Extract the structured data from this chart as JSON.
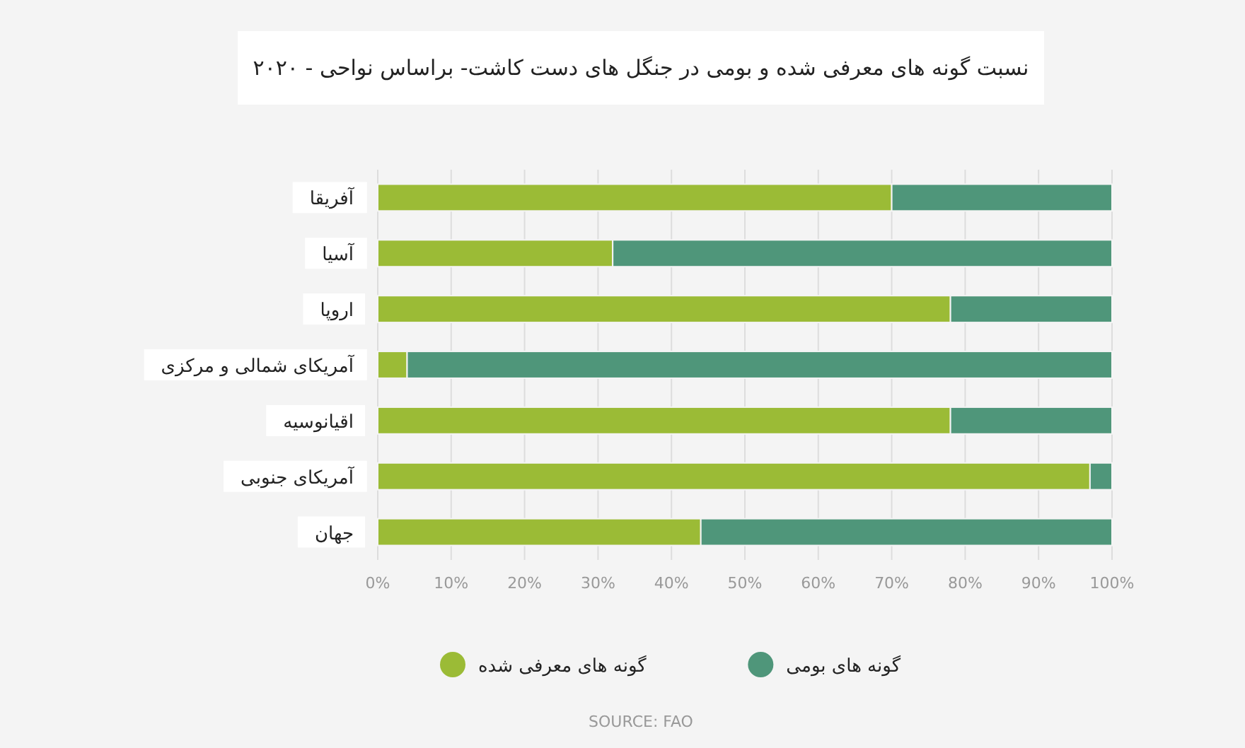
{
  "chart_data": {
    "type": "bar",
    "orientation": "horizontal",
    "stacked": true,
    "title": "نسبت گونه های معرفی شده و بومی در جنگل های دست کاشت- براساس نواحی - ۲۰۲۰",
    "categories": [
      "آفریقا",
      "آسیا",
      "اروپا",
      "آمریکای شمالی و مرکزی",
      "اقیانوسیه",
      "آمریکای جنوبی",
      "جهان"
    ],
    "series": [
      {
        "name": "گونه های معرفی شده",
        "color": "#9bbb36",
        "values": [
          70,
          32,
          78,
          4,
          78,
          97,
          44
        ]
      },
      {
        "name": "گونه های بومی",
        "color": "#4f967a",
        "values": [
          30,
          68,
          22,
          96,
          22,
          3,
          56
        ]
      }
    ],
    "xlim": [
      0,
      100
    ],
    "xticks": [
      {
        "value": 0,
        "label": "0%"
      },
      {
        "value": 10,
        "label": "10%"
      },
      {
        "value": 20,
        "label": "20%"
      },
      {
        "value": 30,
        "label": "30%"
      },
      {
        "value": 40,
        "label": "40%"
      },
      {
        "value": 50,
        "label": "50%"
      },
      {
        "value": 60,
        "label": "60%"
      },
      {
        "value": 70,
        "label": "70%"
      },
      {
        "value": 80,
        "label": "80%"
      },
      {
        "value": 90,
        "label": "90%"
      },
      {
        "value": 100,
        "label": "100%"
      }
    ],
    "grid": "x",
    "legend": "bottom",
    "annotations": [
      "SOURCE: FAO"
    ]
  }
}
